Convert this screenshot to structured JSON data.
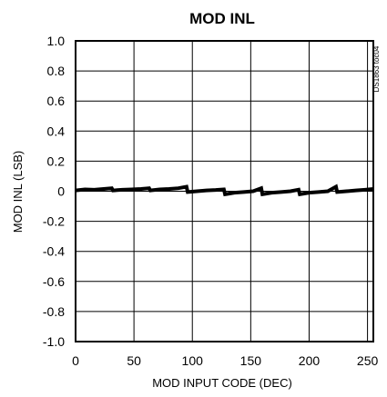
{
  "chart_data": {
    "type": "line",
    "title": "MOD INL",
    "xlabel": "MOD INPUT CODE (DEC)",
    "ylabel": "MOD INL (LSB)",
    "xlim": [
      0,
      255
    ],
    "ylim": [
      -1.0,
      1.0
    ],
    "x_ticks": [
      "0",
      "50",
      "100",
      "150",
      "200",
      "250"
    ],
    "y_ticks": [
      "1.0",
      "0.8",
      "0.6",
      "0.4",
      "0.2",
      "0",
      "-0.2",
      "-0.4",
      "-0.6",
      "-0.8",
      "-1.0"
    ],
    "grid": true,
    "figure_code": "DS1863 toc04",
    "series": [
      {
        "x": [
          0,
          8,
          16,
          24,
          31,
          32,
          40,
          48,
          56,
          63,
          64,
          72,
          80,
          88,
          95,
          96,
          104,
          112,
          120,
          127,
          128,
          136,
          144,
          152,
          159,
          160,
          168,
          176,
          184,
          191,
          192,
          200,
          208,
          216,
          223,
          224,
          232,
          240,
          248,
          255
        ],
        "values": [
          0.005,
          0.012,
          0.01,
          0.015,
          0.02,
          0.005,
          0.01,
          0.012,
          0.015,
          0.02,
          0.005,
          0.012,
          0.015,
          0.02,
          0.03,
          -0.005,
          0.0,
          0.005,
          0.008,
          0.012,
          -0.02,
          -0.01,
          -0.005,
          0.0,
          0.02,
          -0.02,
          -0.01,
          -0.005,
          0.0,
          0.01,
          -0.02,
          -0.01,
          -0.005,
          0.0,
          0.03,
          -0.005,
          0.0,
          0.005,
          0.01,
          0.015
        ],
        "color": "#000000"
      }
    ]
  }
}
